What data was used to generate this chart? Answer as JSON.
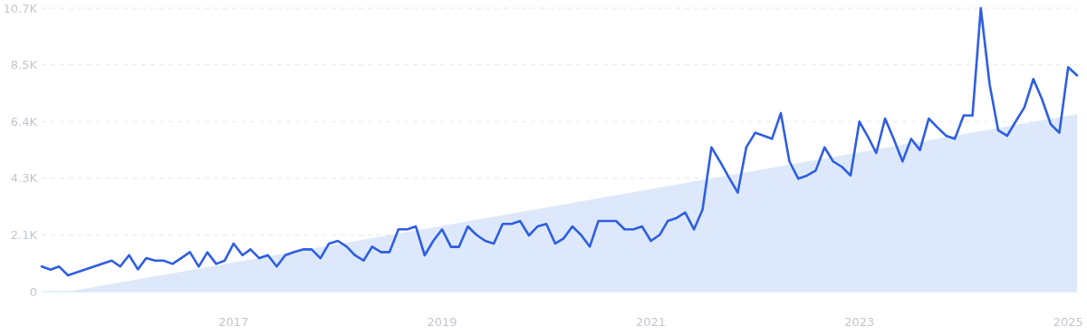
{
  "chart_data": {
    "type": "line",
    "xlim": [
      "2015-03",
      "2025-02"
    ],
    "xticks": [
      "2017",
      "2019",
      "2021",
      "2023",
      "2025"
    ],
    "ylim": [
      0,
      10680
    ],
    "yticks": [
      0,
      {
        "value": 2136,
        "label": "2.1K"
      },
      {
        "value": 4272,
        "label": "4.3K"
      },
      {
        "value": 6408,
        "label": "6.4K"
      },
      {
        "value": 8544,
        "label": "8.5K"
      },
      {
        "value": 10680,
        "label": "10.7K"
      }
    ],
    "grid": "y",
    "series": [
      {
        "type": "area",
        "color": "#dde9fa",
        "x": [
          "2015-06",
          "2025-02"
        ],
        "values": [
          0,
          6690
        ]
      },
      {
        "type": "line",
        "color": "#2f5ee3",
        "x": [
          "2015-03",
          "2015-04",
          "2015-05",
          "2015-06",
          "2015-11",
          "2015-12",
          "2016-01",
          "2016-02",
          "2016-03",
          "2016-04",
          "2016-05",
          "2016-06",
          "2016-07",
          "2016-08",
          "2016-09",
          "2016-10",
          "2016-11",
          "2016-12",
          "2017-01",
          "2017-02",
          "2017-03",
          "2017-04",
          "2017-05",
          "2017-06",
          "2017-07",
          "2017-08",
          "2017-09",
          "2017-10",
          "2017-11",
          "2017-12",
          "2018-01",
          "2018-02",
          "2018-03",
          "2018-04",
          "2018-05",
          "2018-06",
          "2018-07",
          "2018-08",
          "2018-09",
          "2018-10",
          "2018-11",
          "2018-12",
          "2019-01",
          "2019-02",
          "2019-03",
          "2019-04",
          "2019-05",
          "2019-06",
          "2019-07",
          "2019-08",
          "2019-09",
          "2019-10",
          "2019-11",
          "2019-12",
          "2020-01",
          "2020-02",
          "2020-03",
          "2020-04",
          "2020-05",
          "2020-06",
          "2020-07",
          "2020-08",
          "2020-09",
          "2020-10",
          "2020-11",
          "2020-12",
          "2021-01",
          "2021-02",
          "2021-03",
          "2021-04",
          "2021-05",
          "2021-06",
          "2021-07",
          "2021-08",
          "2021-09",
          "2021-10",
          "2021-11",
          "2021-12",
          "2022-01",
          "2022-02",
          "2022-03",
          "2022-04",
          "2022-05",
          "2022-06",
          "2022-07",
          "2022-08",
          "2022-09",
          "2022-10",
          "2022-11",
          "2022-12",
          "2023-01",
          "2023-02",
          "2023-03",
          "2023-04",
          "2023-05",
          "2023-06",
          "2023-07",
          "2023-08",
          "2023-09",
          "2023-10",
          "2023-11",
          "2023-12",
          "2024-01",
          "2024-02",
          "2024-03",
          "2024-04",
          "2024-05",
          "2024-06",
          "2024-07",
          "2024-08",
          "2024-09",
          "2024-10",
          "2024-11",
          "2024-12",
          "2025-01",
          "2025-02"
        ],
        "values": [
          945,
          830,
          945,
          615,
          1170,
          945,
          1375,
          840,
          1260,
          1170,
          1170,
          1045,
          1260,
          1490,
          945,
          1480,
          1045,
          1170,
          1810,
          1375,
          1590,
          1260,
          1375,
          945,
          1375,
          1490,
          1590,
          1590,
          1260,
          1810,
          1910,
          1695,
          1375,
          1170,
          1695,
          1490,
          1490,
          2345,
          2345,
          2455,
          1365,
          1910,
          2345,
          1685,
          1685,
          2455,
          2140,
          1910,
          1810,
          2550,
          2550,
          2660,
          2115,
          2455,
          2550,
          1810,
          2000,
          2455,
          2140,
          1695,
          2660,
          2660,
          2660,
          2345,
          2345,
          2455,
          1910,
          2140,
          2660,
          2775,
          2980,
          2345,
          3095,
          5440,
          4880,
          4300,
          3730,
          5440,
          5985,
          5870,
          5755,
          6725,
          4905,
          4255,
          4370,
          4560,
          5435,
          4905,
          4700,
          4370,
          6405,
          5815,
          5220,
          6520,
          5755,
          4905,
          5755,
          5335,
          6520,
          6190,
          5870,
          5755,
          6635,
          6635,
          10680,
          7805,
          6075,
          5870,
          6405,
          6950,
          8010,
          7260,
          6305,
          5985,
          8455,
          8145
        ]
      }
    ]
  }
}
